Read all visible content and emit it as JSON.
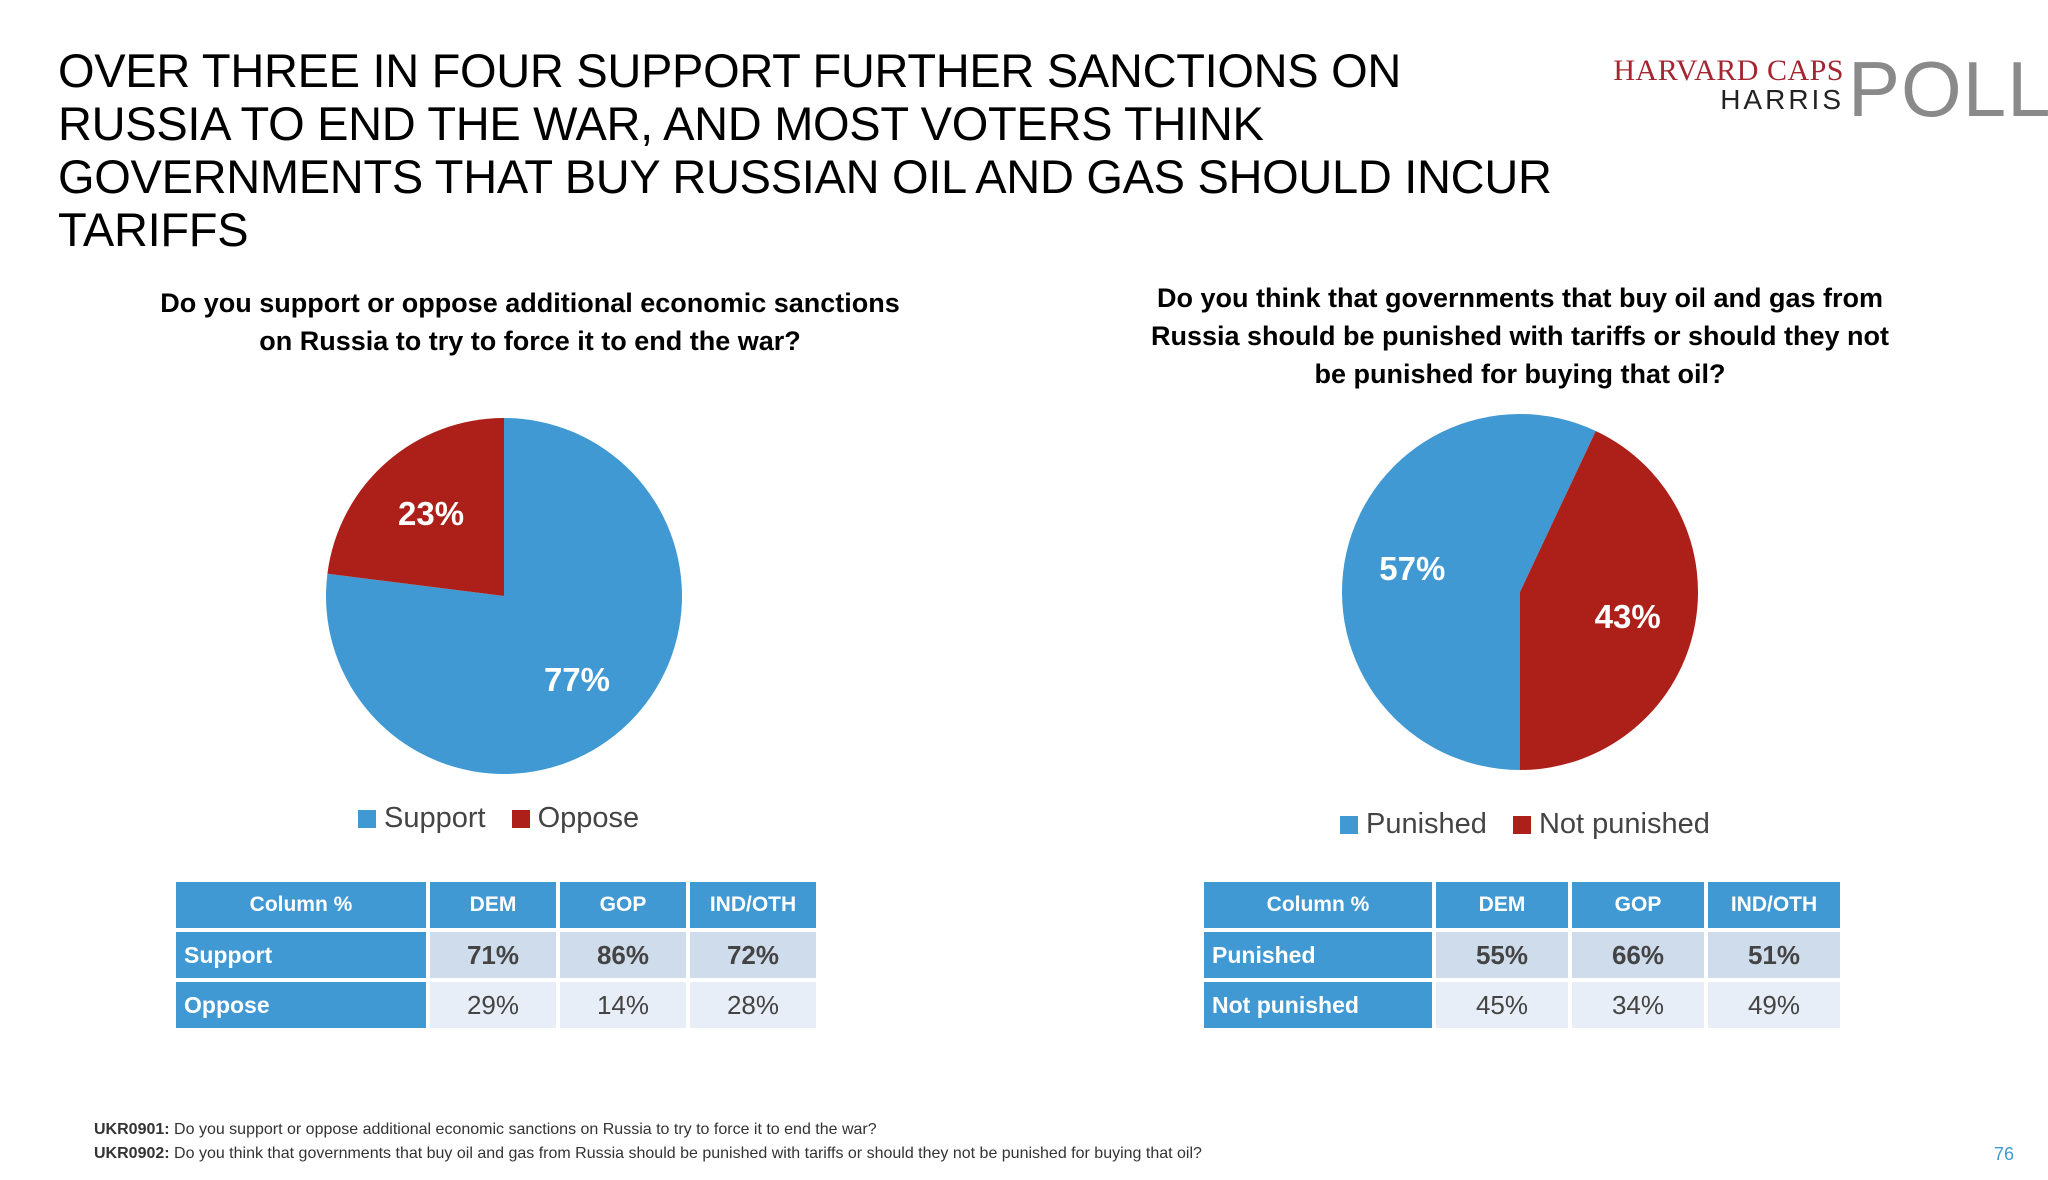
{
  "title": "OVER THREE IN FOUR SUPPORT FURTHER SANCTIONS ON RUSSIA TO END THE WAR, AND MOST VOTERS THINK GOVERNMENTS THAT BUY RUSSIAN OIL AND GAS SHOULD INCUR TARIFFS",
  "logo": {
    "line1": "HARVARD CAPS",
    "line2": "HARRIS",
    "line3": "POLL"
  },
  "colors": {
    "blue": "#4199d3",
    "red": "#ac2019",
    "header": "#4199d3"
  },
  "chart_data": [
    {
      "type": "pie",
      "title": "Do you support or oppose additional economic sanctions on Russia to try to force it to end the war?",
      "categories": [
        "Support",
        "Oppose"
      ],
      "values": [
        77,
        23
      ],
      "labels": [
        "77%",
        "23%"
      ],
      "legend": "bottom"
    },
    {
      "type": "pie",
      "title": "Do you think that governments that buy oil and gas from Russia should be punished with tariffs or should they not be punished for buying that oil?",
      "categories": [
        "Punished",
        "Not punished"
      ],
      "values": [
        57,
        43
      ],
      "labels": [
        "57%",
        "43%"
      ],
      "legend": "bottom"
    }
  ],
  "tables": [
    {
      "headers": [
        "Column %",
        "DEM",
        "GOP",
        "IND/OTH"
      ],
      "rows": [
        {
          "label": "Support",
          "values": [
            "71%",
            "86%",
            "72%"
          ]
        },
        {
          "label": "Oppose",
          "values": [
            "29%",
            "14%",
            "28%"
          ]
        }
      ]
    },
    {
      "headers": [
        "Column %",
        "DEM",
        "GOP",
        "IND/OTH"
      ],
      "rows": [
        {
          "label": "Punished",
          "values": [
            "55%",
            "66%",
            "51%"
          ]
        },
        {
          "label": "Not punished",
          "values": [
            "45%",
            "34%",
            "49%"
          ]
        }
      ]
    }
  ],
  "footnotes": [
    {
      "code": "UKR0901:",
      "text": " Do you support or oppose additional economic sanctions on Russia to try to force it to end the war?"
    },
    {
      "code": "UKR0902:",
      "text": " Do you think that governments that buy oil and gas from Russia should be punished with tariffs or should they not be punished for buying that oil?"
    }
  ],
  "page_number": "76"
}
